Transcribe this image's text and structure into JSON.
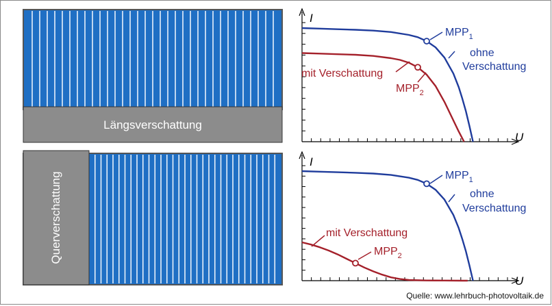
{
  "colors": {
    "module_blue": "#1f6fc4",
    "module_frame": "#555555",
    "shadow_grey": "#8c8c8c",
    "curve_blue": "#1f3c9c",
    "curve_red": "#a4202a",
    "axis": "#000000"
  },
  "module_top": {
    "shadow_label": "Längsverschattung",
    "cell_columns": 34
  },
  "module_bottom": {
    "shadow_label": "Querverschattung",
    "cell_columns": 32
  },
  "chart_data": [
    {
      "type": "line",
      "title": "",
      "xlabel": "U",
      "ylabel": "I",
      "series": [
        {
          "name": "ohne Verschattung",
          "x": [
            0,
            0.1,
            0.2,
            0.3,
            0.4,
            0.5,
            0.6,
            0.65,
            0.7,
            0.75,
            0.8,
            0.85,
            0.88,
            0.9,
            0.92,
            0.94,
            0.96
          ],
          "y": [
            1.0,
            0.995,
            0.99,
            0.985,
            0.978,
            0.965,
            0.94,
            0.92,
            0.885,
            0.83,
            0.74,
            0.6,
            0.48,
            0.38,
            0.27,
            0.14,
            0.0
          ]
        },
        {
          "name": "mit Verschattung",
          "x": [
            0,
            0.1,
            0.2,
            0.3,
            0.4,
            0.5,
            0.55,
            0.6,
            0.65,
            0.7,
            0.75,
            0.8,
            0.84,
            0.88,
            0.91
          ],
          "y": [
            0.78,
            0.775,
            0.77,
            0.765,
            0.755,
            0.735,
            0.72,
            0.695,
            0.655,
            0.59,
            0.49,
            0.35,
            0.22,
            0.09,
            0.0
          ]
        }
      ],
      "annotations": [
        {
          "label": "MPP",
          "sub": "1",
          "series": "ohne Verschattung",
          "x": 0.7,
          "y": 0.885
        },
        {
          "label": "MPP",
          "sub": "2",
          "series": "mit Verschattung",
          "x": 0.65,
          "y": 0.655
        }
      ]
    },
    {
      "type": "line",
      "title": "",
      "xlabel": "U",
      "ylabel": "I",
      "series": [
        {
          "name": "ohne Verschattung",
          "x": [
            0,
            0.1,
            0.2,
            0.3,
            0.4,
            0.5,
            0.6,
            0.65,
            0.7,
            0.75,
            0.8,
            0.85,
            0.88,
            0.9,
            0.92,
            0.94,
            0.96
          ],
          "y": [
            1.0,
            0.995,
            0.99,
            0.985,
            0.978,
            0.965,
            0.94,
            0.92,
            0.885,
            0.83,
            0.74,
            0.6,
            0.48,
            0.38,
            0.27,
            0.14,
            0.0
          ]
        },
        {
          "name": "mit Verschattung",
          "x": [
            0,
            0.05,
            0.1,
            0.15,
            0.2,
            0.25,
            0.3,
            0.35,
            0.4,
            0.45,
            0.5,
            0.55,
            0.6,
            0.7,
            0.8,
            0.9,
            0.93
          ],
          "y": [
            0.35,
            0.33,
            0.305,
            0.275,
            0.24,
            0.2,
            0.16,
            0.12,
            0.085,
            0.055,
            0.03,
            0.015,
            0.006,
            0.002,
            0.001,
            0.0,
            0.0
          ]
        }
      ],
      "annotations": [
        {
          "label": "MPP",
          "sub": "1",
          "series": "ohne Verschattung",
          "x": 0.7,
          "y": 0.885
        },
        {
          "label": "MPP",
          "sub": "2",
          "series": "mit Verschattung",
          "x": 0.3,
          "y": 0.16
        }
      ]
    }
  ],
  "labels": {
    "top": {
      "ohne_1": "ohne",
      "ohne_2": "Verschattung",
      "mit": "mit Verschattung"
    },
    "bottom": {
      "ohne_1": "ohne",
      "ohne_2": "Verschattung",
      "mit": "mit Verschattung"
    }
  },
  "source": "Quelle: www.lehrbuch-photovoltaik.de"
}
